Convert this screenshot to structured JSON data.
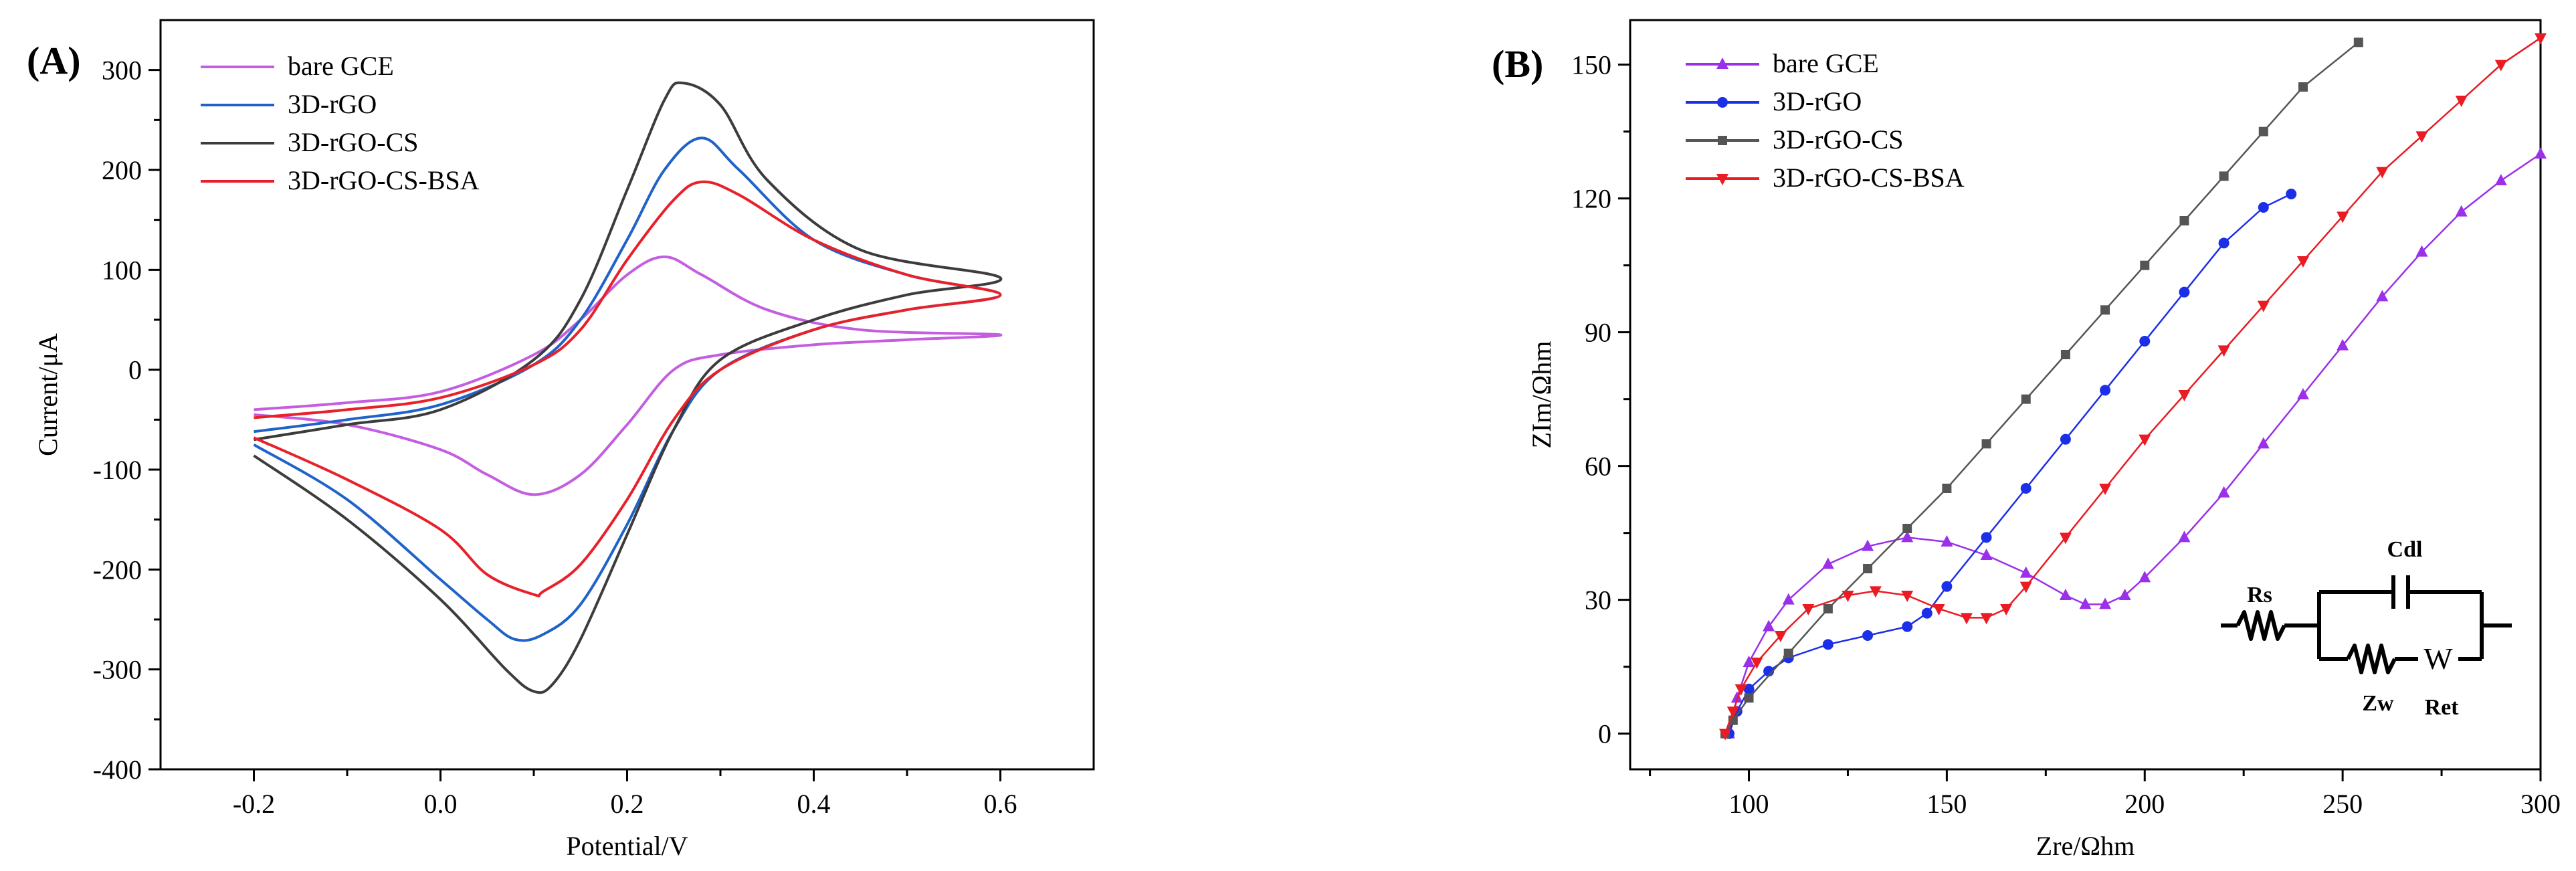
{
  "chart_data": [
    {
      "panel": "(A)",
      "type": "line",
      "title": "",
      "xlabel": "Potential/V",
      "ylabel": "Current/μA",
      "xlim": [
        -0.3,
        0.7
      ],
      "ylim": [
        -400,
        350
      ],
      "xticks": [
        -0.2,
        0.0,
        0.2,
        0.4,
        0.6
      ],
      "xtick_labels": [
        "-0.2",
        "0.0",
        "0.2",
        "0.4",
        "0.6"
      ],
      "yticks": [
        -400,
        -300,
        -200,
        -100,
        0,
        100,
        200,
        300
      ],
      "ytick_labels": [
        "-400",
        "-300",
        "-200",
        "-100",
        "0",
        "100",
        "200",
        "300"
      ],
      "grid": false,
      "legend_position": "top-left",
      "series": [
        {
          "name": "bare GCE",
          "color": "#c45ee0",
          "x": [
            -0.2,
            -0.1,
            0.0,
            0.1,
            0.15,
            0.2,
            0.24,
            0.28,
            0.35,
            0.45,
            0.6,
            0.5,
            0.4,
            0.3,
            0.25,
            0.2,
            0.15,
            0.1,
            0.05,
            0.0,
            -0.1,
            -0.2
          ],
          "y": [
            -40,
            -33,
            -22,
            15,
            50,
            95,
            113,
            95,
            60,
            40,
            35,
            30,
            25,
            15,
            0,
            -55,
            -105,
            -125,
            -105,
            -80,
            -55,
            -45
          ]
        },
        {
          "name": "3D-rGO",
          "color": "#1f63c9",
          "x": [
            -0.2,
            -0.1,
            0.0,
            0.1,
            0.15,
            0.2,
            0.24,
            0.28,
            0.32,
            0.4,
            0.5,
            0.6,
            0.5,
            0.4,
            0.3,
            0.25,
            0.2,
            0.15,
            0.11,
            0.08,
            0.05,
            0.0,
            -0.1,
            -0.2
          ],
          "y": [
            -62,
            -50,
            -35,
            5,
            50,
            130,
            200,
            232,
            200,
            130,
            95,
            75,
            60,
            40,
            0,
            -60,
            -155,
            -235,
            -265,
            -270,
            -250,
            -210,
            -130,
            -75
          ]
        },
        {
          "name": "3D-rGO-CS",
          "color": "#3c3c3c",
          "x": [
            -0.2,
            -0.1,
            0.0,
            0.1,
            0.15,
            0.2,
            0.24,
            0.26,
            0.3,
            0.35,
            0.45,
            0.6,
            0.5,
            0.4,
            0.3,
            0.25,
            0.2,
            0.15,
            0.12,
            0.1,
            0.07,
            0.0,
            -0.1,
            -0.2
          ],
          "y": [
            -70,
            -55,
            -40,
            10,
            70,
            180,
            270,
            287,
            265,
            190,
            120,
            92,
            75,
            50,
            10,
            -60,
            -165,
            -270,
            -315,
            -322,
            -300,
            -230,
            -150,
            -86
          ]
        },
        {
          "name": "3D-rGO-CS-BSA",
          "color": "#e8202a",
          "x": [
            -0.2,
            -0.1,
            0.0,
            0.1,
            0.15,
            0.2,
            0.25,
            0.28,
            0.32,
            0.4,
            0.5,
            0.6,
            0.5,
            0.4,
            0.3,
            0.25,
            0.2,
            0.15,
            0.11,
            0.1,
            0.05,
            0.0,
            -0.1,
            -0.2
          ],
          "y": [
            -48,
            -40,
            -28,
            5,
            40,
            110,
            170,
            188,
            175,
            130,
            95,
            75,
            60,
            40,
            0,
            -50,
            -130,
            -195,
            -222,
            -225,
            -205,
            -160,
            -110,
            -68
          ]
        }
      ]
    },
    {
      "panel": "(B)",
      "type": "scatter",
      "title": "",
      "xlabel": "Zre/Ωhm",
      "ylabel": "ZIm/Ωhm",
      "xlim": [
        70,
        300
      ],
      "ylim": [
        -8,
        160
      ],
      "xticks": [
        100,
        150,
        200,
        250,
        300
      ],
      "xtick_labels": [
        "100",
        "150",
        "200",
        "250",
        "300"
      ],
      "yticks": [
        0,
        30,
        60,
        90,
        120,
        150
      ],
      "ytick_labels": [
        "0",
        "30",
        "60",
        "90",
        "120",
        "150"
      ],
      "grid": false,
      "legend_position": "top-left",
      "series": [
        {
          "name": "bare GCE",
          "color": "#9b30e8",
          "marker": "triangle-up",
          "x": [
            95,
            97,
            100,
            105,
            110,
            120,
            130,
            140,
            150,
            160,
            170,
            180,
            185,
            190,
            195,
            200,
            210,
            220,
            230,
            240,
            250,
            260,
            270,
            280,
            290,
            300
          ],
          "y": [
            0,
            8,
            16,
            24,
            30,
            38,
            42,
            44,
            43,
            40,
            36,
            31,
            29,
            29,
            31,
            35,
            44,
            54,
            65,
            76,
            87,
            98,
            108,
            117,
            124,
            130
          ]
        },
        {
          "name": "3D-rGO",
          "color": "#1c2fe8",
          "marker": "circle",
          "x": [
            95,
            97,
            100,
            105,
            110,
            120,
            130,
            140,
            145,
            150,
            160,
            170,
            180,
            190,
            200,
            210,
            220,
            230,
            237
          ],
          "y": [
            0,
            5,
            10,
            14,
            17,
            20,
            22,
            24,
            27,
            33,
            44,
            55,
            66,
            77,
            88,
            99,
            110,
            118,
            121
          ]
        },
        {
          "name": "3D-rGO-CS",
          "color": "#555555",
          "marker": "square",
          "x": [
            94,
            96,
            100,
            110,
            120,
            130,
            140,
            150,
            160,
            170,
            180,
            190,
            200,
            210,
            220,
            230,
            240,
            254
          ],
          "y": [
            0,
            3,
            8,
            18,
            28,
            37,
            46,
            55,
            65,
            75,
            85,
            95,
            105,
            115,
            125,
            135,
            145,
            155
          ]
        },
        {
          "name": "3D-rGO-CS-BSA",
          "color": "#ea1b23",
          "marker": "triangle-down",
          "x": [
            94,
            96,
            98,
            102,
            108,
            115,
            125,
            132,
            140,
            148,
            155,
            160,
            165,
            170,
            180,
            190,
            200,
            210,
            220,
            230,
            240,
            250,
            260,
            270,
            280,
            290,
            300
          ],
          "y": [
            0,
            5,
            10,
            16,
            22,
            28,
            31,
            32,
            31,
            28,
            26,
            26,
            28,
            33,
            44,
            55,
            66,
            76,
            86,
            96,
            106,
            116,
            126,
            134,
            142,
            150,
            156
          ]
        }
      ],
      "inset_circuit": {
        "labels": [
          "Rs",
          "Cdl",
          "Zw",
          "W",
          "Ret"
        ]
      }
    }
  ]
}
